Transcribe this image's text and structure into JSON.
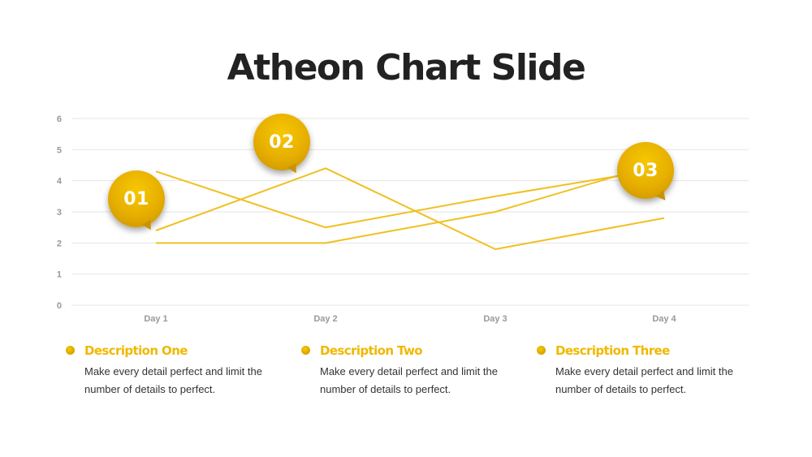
{
  "title": "Atheon Chart Slide",
  "colors": {
    "accent": "#F0B800",
    "line": "#F0C020",
    "grid": "#E6E6E6",
    "tick": "#999999",
    "text": "#222222"
  },
  "chart_data": {
    "type": "line",
    "categories": [
      "Day 1",
      "Day 2",
      "Day 3",
      "Day 4"
    ],
    "series": [
      {
        "values": [
          4.3,
          2.5,
          3.5,
          4.4
        ]
      },
      {
        "values": [
          2.4,
          4.4,
          1.8,
          2.8
        ]
      },
      {
        "values": [
          2.0,
          2.0,
          3.0,
          4.6
        ]
      }
    ],
    "ylim": [
      0,
      6
    ],
    "yticks": [
      0,
      1,
      2,
      3,
      4,
      5,
      6
    ],
    "grid": true,
    "xlabel": "",
    "ylabel": ""
  },
  "markers": [
    {
      "label": "01"
    },
    {
      "label": "02"
    },
    {
      "label": "03"
    }
  ],
  "descriptions": [
    {
      "title": "Description One",
      "text": "Make every detail perfect and limit the number of details to perfect."
    },
    {
      "title": "Description Two",
      "text": "Make every detail perfect and limit the number of details to perfect."
    },
    {
      "title": "Description Three",
      "text": "Make every detail perfect and limit the number of details to perfect."
    }
  ]
}
